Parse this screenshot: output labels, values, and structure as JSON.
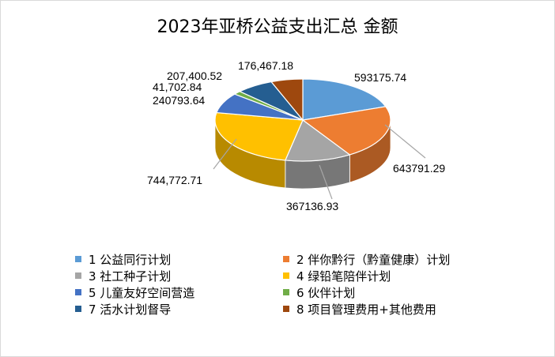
{
  "chart_data": {
    "type": "pie",
    "title": "2023年亚桥公益支出汇总 金额",
    "style": "3d",
    "categories": [
      "1 公益同行计划",
      "2 伴你黔行（黔童健康）计划",
      "3 社工种子计划",
      "4 绿铅笔陪伴计划",
      "5 儿童友好空间营造",
      "6 伙伴计划",
      "7 活水计划督导",
      "8 项目管理费用+其他费用"
    ],
    "values": [
      593175.74,
      643791.29,
      367136.93,
      744772.71,
      240793.64,
      41702.84,
      207400.52,
      176467.18
    ],
    "data_labels": [
      "593175.74",
      "643791.29",
      "367136.93",
      "744,772.71",
      "240793.64",
      "41,702.84",
      "207,400.52",
      "176,467.18"
    ],
    "colors": [
      "#5b9bd5",
      "#ed7d31",
      "#a5a5a5",
      "#ffc000",
      "#4472c4",
      "#70ad47",
      "#255e91",
      "#9e480e"
    ],
    "legend_position": "bottom"
  }
}
